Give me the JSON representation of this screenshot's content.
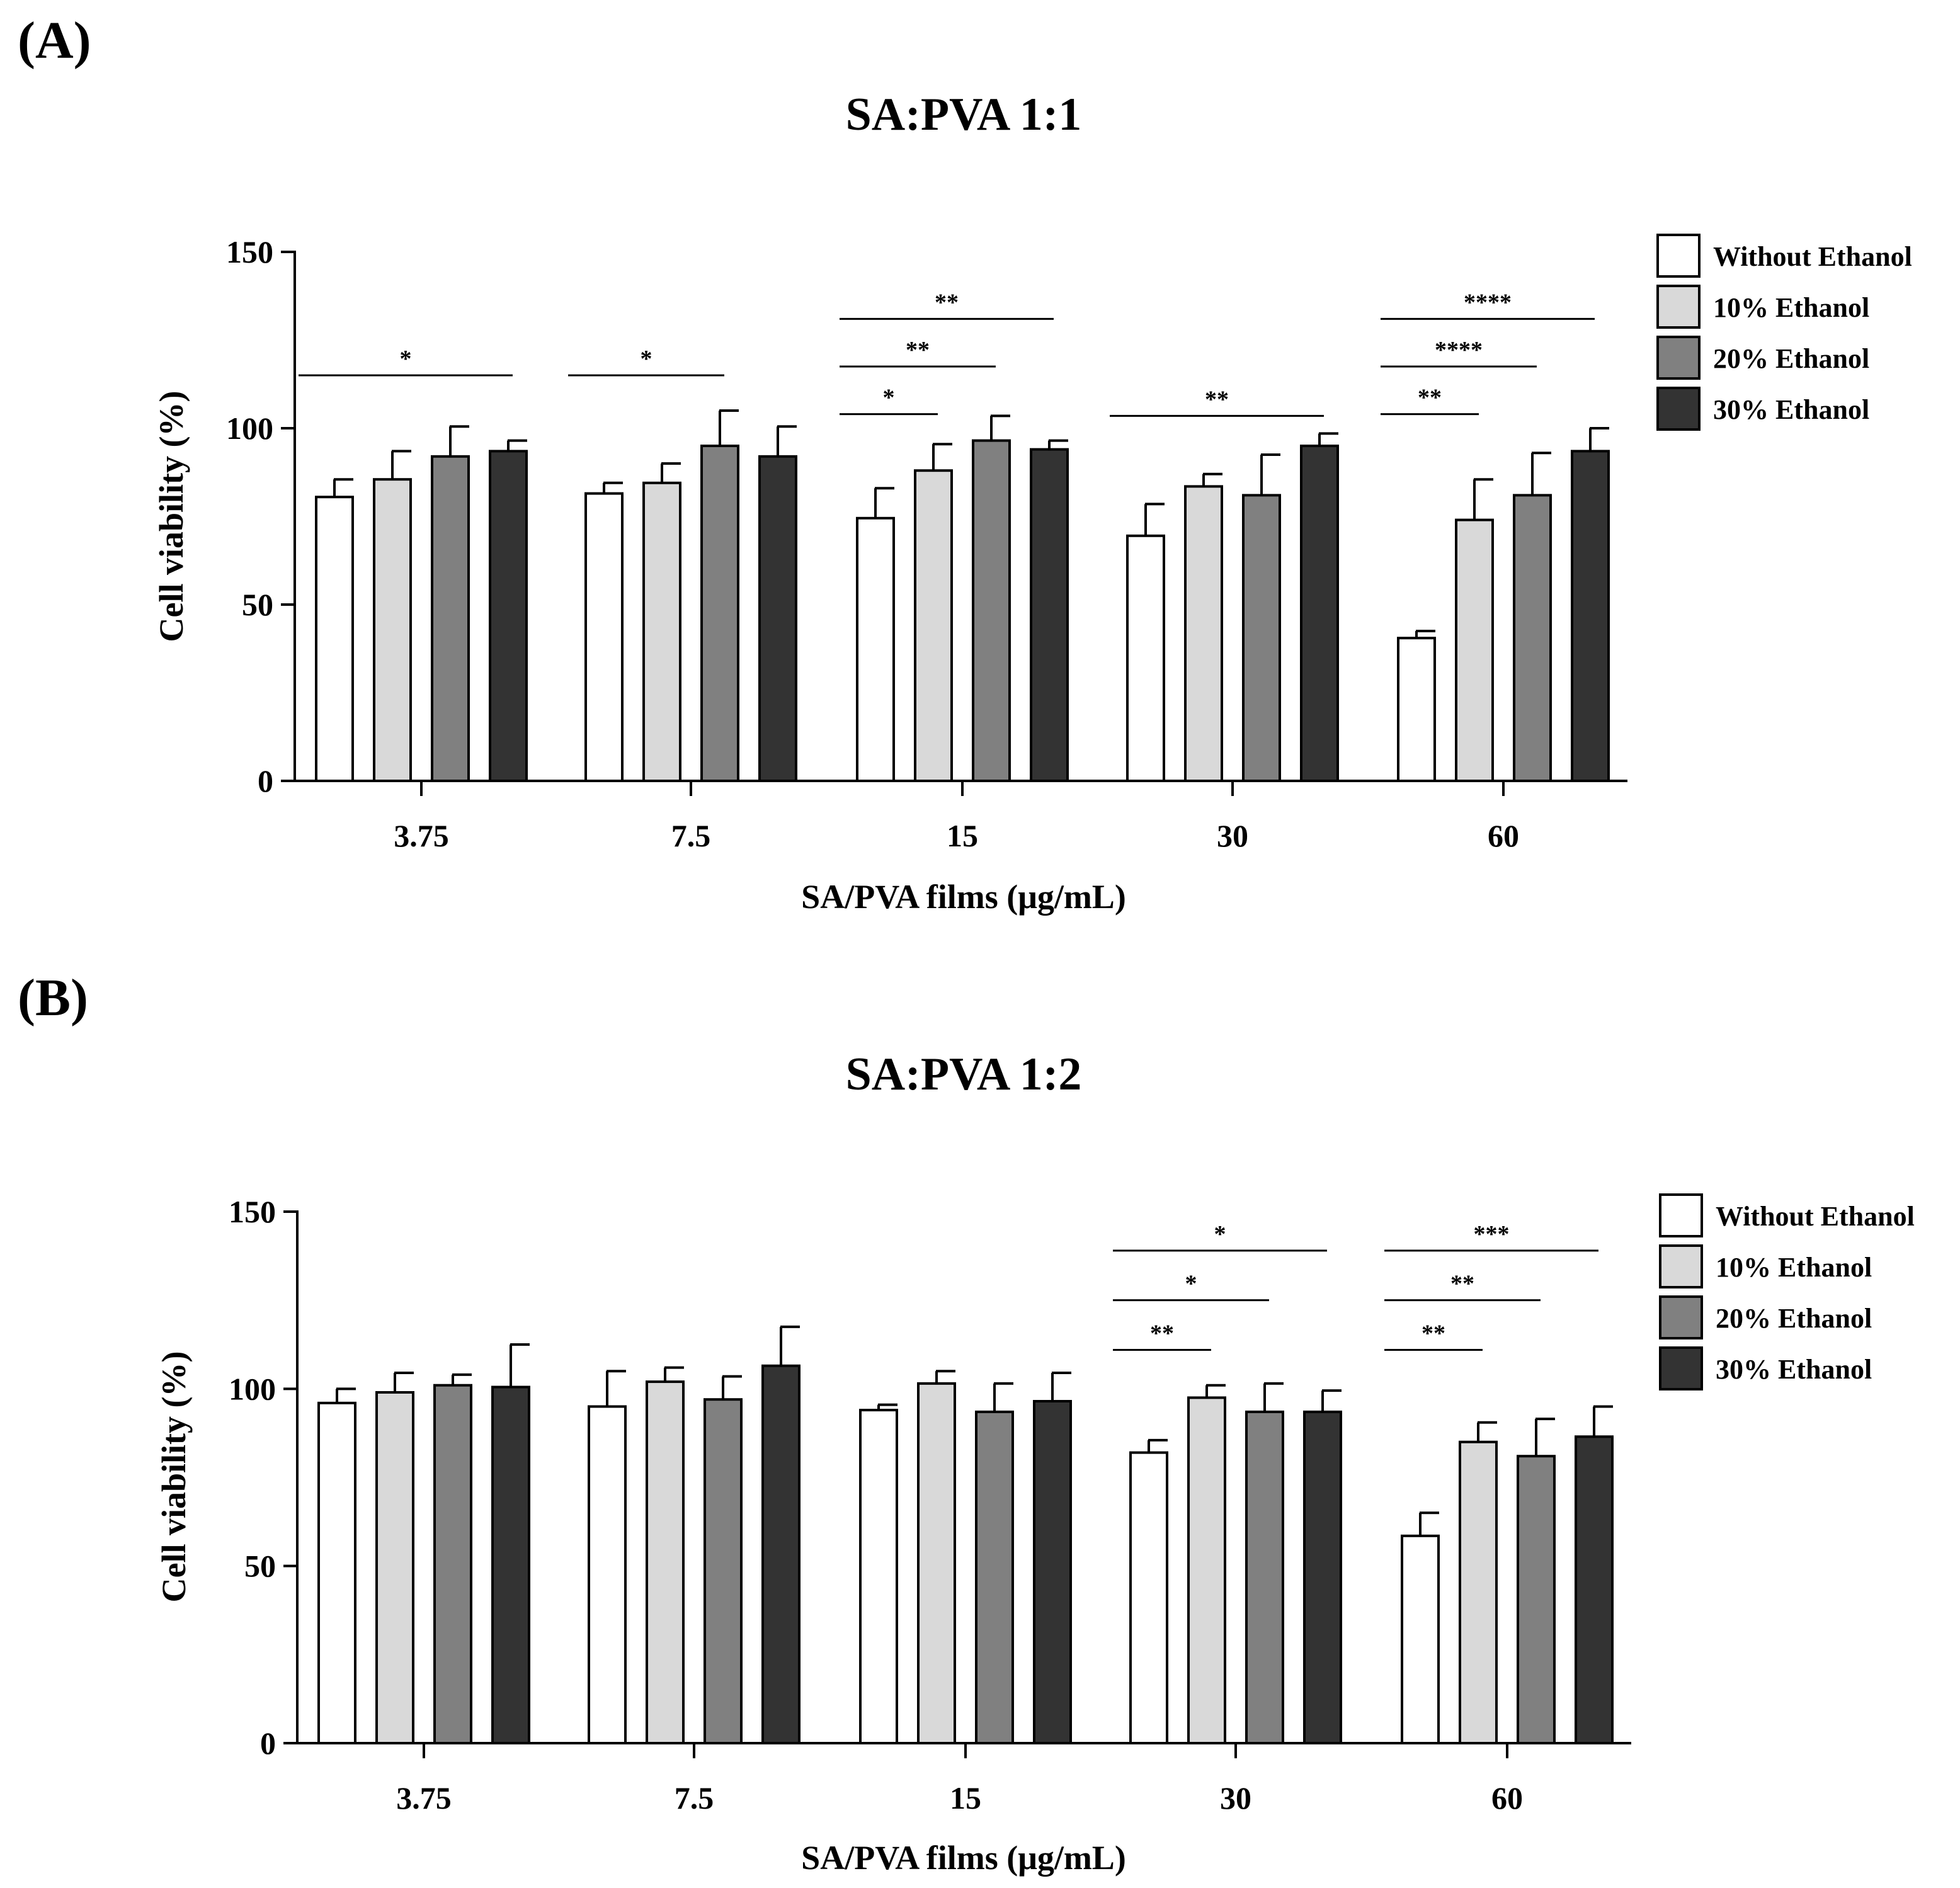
{
  "chart_data": [
    {
      "type": "bar",
      "panel_label": "(A)",
      "title": "SA:PVA 1:1",
      "xlabel": "SA/PVA films (μg/mL)",
      "ylabel": "Cell viability (%)",
      "ylim": [
        0,
        150
      ],
      "yticks": [
        "0",
        "50",
        "100",
        "150"
      ],
      "categories": [
        "3.75",
        "7.5",
        "15",
        "30",
        "60"
      ],
      "series": [
        {
          "name": "Without Ethanol",
          "color": "#ffffff",
          "values": [
            80.5,
            81.5,
            74.5,
            69.5,
            40.5
          ],
          "errors": [
            5,
            3,
            8.5,
            9,
            2
          ]
        },
        {
          "name": "10% Ethanol",
          "color": "#d9d9d9",
          "values": [
            85.5,
            84.5,
            88,
            83.5,
            74
          ],
          "errors": [
            8,
            5.5,
            7.5,
            3.5,
            11.5
          ]
        },
        {
          "name": "20% Ethanol",
          "color": "#808080",
          "values": [
            92,
            95,
            96.5,
            81,
            81
          ],
          "errors": [
            8.5,
            10,
            7,
            11.5,
            12
          ]
        },
        {
          "name": "30% Ethanol",
          "color": "#333333",
          "values": [
            93.5,
            92,
            94,
            95,
            93.5
          ],
          "errors": [
            3,
            8.5,
            2.5,
            3.5,
            6.5
          ]
        }
      ],
      "significance": [
        {
          "category": 0,
          "from_series": 0,
          "to_series": 3,
          "label": "*",
          "y": 115
        },
        {
          "category": 1,
          "from_series": 0,
          "to_series": 2,
          "label": "*",
          "y": 115
        },
        {
          "category": 2,
          "from_series": 0,
          "to_series": 3,
          "label": "**",
          "y": 131
        },
        {
          "category": 2,
          "from_series": 0,
          "to_series": 2,
          "label": "**",
          "y": 117.5
        },
        {
          "category": 2,
          "from_series": 0,
          "to_series": 1,
          "label": "*",
          "y": 104
        },
        {
          "category": 3,
          "from_series": 0,
          "to_series": 3,
          "label": "**",
          "y": 103.5
        },
        {
          "category": 4,
          "from_series": 0,
          "to_series": 3,
          "label": "****",
          "y": 131
        },
        {
          "category": 4,
          "from_series": 0,
          "to_series": 2,
          "label": "****",
          "y": 117.5
        },
        {
          "category": 4,
          "from_series": 0,
          "to_series": 1,
          "label": "**",
          "y": 104
        }
      ]
    },
    {
      "type": "bar",
      "panel_label": "(B)",
      "title": "SA:PVA 1:2",
      "xlabel": "SA/PVA films (μg/mL)",
      "ylabel": "Cell viability (%)",
      "ylim": [
        0,
        150
      ],
      "yticks": [
        "0",
        "50",
        "100",
        "150"
      ],
      "categories": [
        "3.75",
        "7.5",
        "15",
        "30",
        "60"
      ],
      "series": [
        {
          "name": "Without Ethanol",
          "color": "#ffffff",
          "values": [
            96,
            95,
            94,
            82,
            58.5
          ],
          "errors": [
            4,
            10,
            1.5,
            3.5,
            6.5
          ]
        },
        {
          "name": "10% Ethanol",
          "color": "#d9d9d9",
          "values": [
            99,
            102,
            101.5,
            97.5,
            85
          ],
          "errors": [
            5.5,
            4,
            3.5,
            3.5,
            5.5
          ]
        },
        {
          "name": "20% Ethanol",
          "color": "#808080",
          "values": [
            101,
            97,
            93.5,
            93.5,
            81
          ],
          "errors": [
            3,
            6.5,
            8,
            8,
            10.5
          ]
        },
        {
          "name": "30% Ethanol",
          "color": "#333333",
          "values": [
            100.5,
            106.5,
            96.5,
            93.5,
            86.5
          ],
          "errors": [
            12,
            11,
            8,
            6,
            8.5
          ]
        }
      ],
      "significance": [
        {
          "category": 3,
          "from_series": 0,
          "to_series": 3,
          "label": "*",
          "y": 139
        },
        {
          "category": 3,
          "from_series": 0,
          "to_series": 2,
          "label": "*",
          "y": 125
        },
        {
          "category": 3,
          "from_series": 0,
          "to_series": 1,
          "label": "**",
          "y": 111
        },
        {
          "category": 4,
          "from_series": 0,
          "to_series": 3,
          "label": "***",
          "y": 139
        },
        {
          "category": 4,
          "from_series": 0,
          "to_series": 2,
          "label": "**",
          "y": 125
        },
        {
          "category": 4,
          "from_series": 0,
          "to_series": 1,
          "label": "**",
          "y": 111
        }
      ]
    }
  ]
}
